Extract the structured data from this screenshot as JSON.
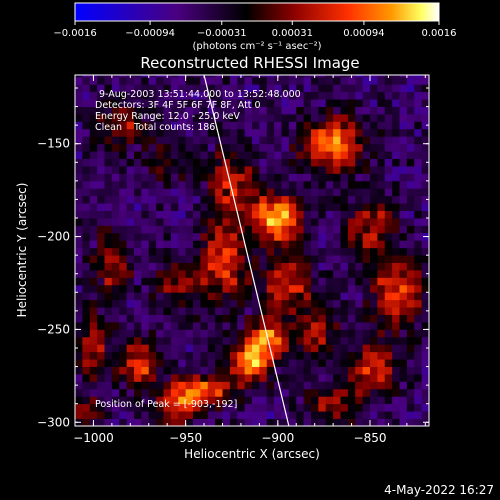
{
  "chart_data": {
    "type": "heatmap",
    "title": "Reconstructed RHESSI Image",
    "xlabel": "Heliocentric X (arcsec)",
    "ylabel": "Heliocentric Y (arcsec)",
    "xlim": [
      -1010,
      -818
    ],
    "ylim": [
      -302,
      -113
    ],
    "x_ticks": [
      -1000,
      -950,
      -900,
      -850
    ],
    "x_tick_labels": [
      "−1000",
      "−950",
      "−900",
      "−850"
    ],
    "y_ticks": [
      -300,
      -250,
      -200,
      -150
    ],
    "y_tick_labels": [
      "−300",
      "−250",
      "−200",
      "−150"
    ],
    "colorbar": {
      "range": [
        -0.0016,
        0.0016
      ],
      "ticks": [
        -0.0016,
        -0.00094,
        -0.00031,
        0.00031,
        0.00094,
        0.0016
      ],
      "tick_labels": [
        "−0.0016",
        "−0.00094",
        "−0.00031",
        "0.00031",
        "0.00094",
        "0.0016"
      ],
      "unit_label": "(photons cm⁻² s⁻¹ asec⁻²)",
      "colors": [
        "#0000ff",
        "#4a0080",
        "#000000",
        "#8b0000",
        "#ff3000",
        "#ff9900",
        "#ffff60",
        "#ffffff"
      ]
    },
    "annotations": [
      "9-Aug-2003 13:51:44.000 to 13:52:48.000",
      "Detectors: 3F 4F 5F 6F 7F 8F, Att 0",
      "Energy Range: 12.0 - 25.0 keV",
      "Clean    Total counts: 186.",
      "Position of Peak = [-903,-192]"
    ],
    "limb_line": [
      [
        -940,
        -113
      ],
      [
        -894,
        -302
      ]
    ],
    "hotspots": [
      {
        "x": -900,
        "y": -190,
        "amp": 0.0016,
        "sx": 9,
        "sy": 9
      },
      {
        "x": -870,
        "y": -150,
        "amp": 0.0014,
        "sx": 12,
        "sy": 10
      },
      {
        "x": -925,
        "y": -175,
        "amp": 0.0009,
        "sx": 9,
        "sy": 16
      },
      {
        "x": -930,
        "y": -215,
        "amp": 0.0011,
        "sx": 9,
        "sy": 14
      },
      {
        "x": -895,
        "y": -225,
        "amp": 0.001,
        "sx": 10,
        "sy": 12
      },
      {
        "x": -905,
        "y": -255,
        "amp": 0.0013,
        "sx": 8,
        "sy": 7
      },
      {
        "x": -915,
        "y": -268,
        "amp": 0.0014,
        "sx": 8,
        "sy": 8
      },
      {
        "x": -940,
        "y": -282,
        "amp": 0.0012,
        "sx": 12,
        "sy": 6
      },
      {
        "x": -955,
        "y": -292,
        "amp": 0.001,
        "sx": 9,
        "sy": 7
      },
      {
        "x": -975,
        "y": -268,
        "amp": 0.0011,
        "sx": 7,
        "sy": 10
      },
      {
        "x": -1000,
        "y": -260,
        "amp": 0.0009,
        "sx": 6,
        "sy": 14
      },
      {
        "x": -985,
        "y": -140,
        "amp": 0.0008,
        "sx": 10,
        "sy": 9
      },
      {
        "x": -990,
        "y": -215,
        "amp": 0.0008,
        "sx": 7,
        "sy": 12
      },
      {
        "x": -955,
        "y": -225,
        "amp": 0.0007,
        "sx": 9,
        "sy": 9
      },
      {
        "x": -850,
        "y": -195,
        "amp": 0.0009,
        "sx": 9,
        "sy": 12
      },
      {
        "x": -835,
        "y": -230,
        "amp": 0.0012,
        "sx": 10,
        "sy": 12
      },
      {
        "x": -848,
        "y": -270,
        "amp": 0.001,
        "sx": 10,
        "sy": 10
      },
      {
        "x": -870,
        "y": -290,
        "amp": 0.0008,
        "sx": 9,
        "sy": 7
      },
      {
        "x": -878,
        "y": -252,
        "amp": 0.0008,
        "sx": 7,
        "sy": 9
      },
      {
        "x": -960,
        "y": -160,
        "amp": 0.0005,
        "sx": 8,
        "sy": 8
      },
      {
        "x": -1005,
        "y": -295,
        "amp": 0.0007,
        "sx": 6,
        "sy": 6
      }
    ]
  },
  "footer": {
    "date": "4-May-2022 16:27"
  }
}
